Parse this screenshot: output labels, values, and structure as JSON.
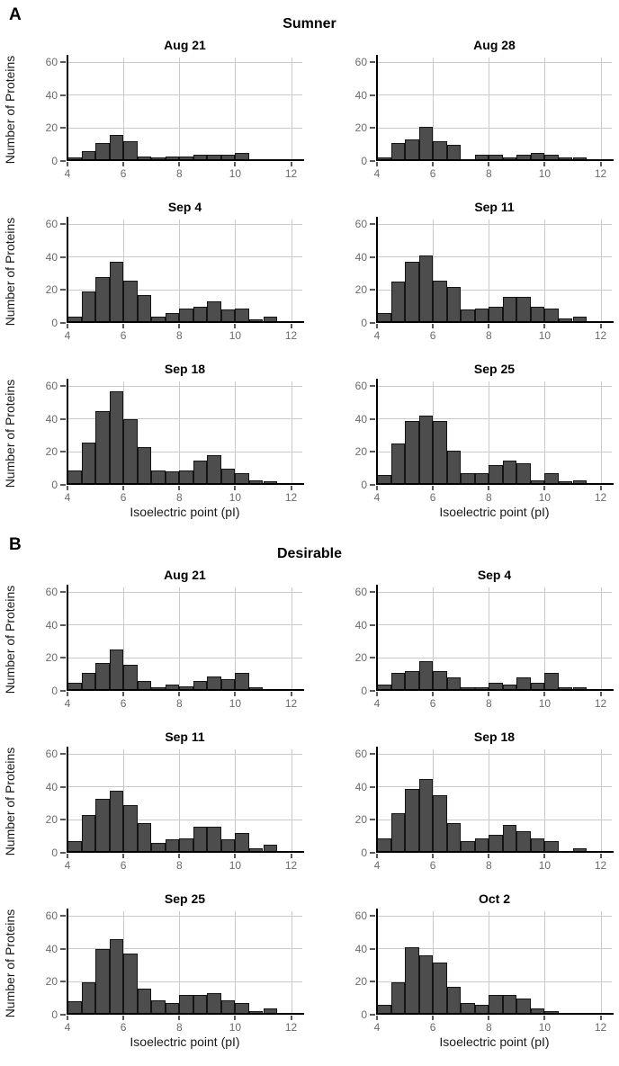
{
  "figure": {
    "colors": {
      "bar_fill": "#4d4d4d",
      "bar_border": "#141414",
      "grid": "#c9c9c9",
      "axis": "#000000",
      "tick_text": "#6b6b6b",
      "tick_mark": "#5a5a5a",
      "text": "#111111"
    }
  },
  "chart_data": [
    {
      "type": "histogram",
      "panel_label": "A",
      "group_title": "Sumner",
      "xlabel": "Isoelectric point (pI)",
      "ylabel": "Number of Proteins",
      "xlim": [
        4,
        12
      ],
      "ylim": [
        0,
        60
      ],
      "x_ticks": [
        4,
        6,
        8,
        10,
        12
      ],
      "y_ticks": [
        0,
        20,
        40,
        60
      ],
      "bin_start": 4,
      "bin_width": 0.5,
      "grid": "on",
      "legend": "none",
      "series": [
        {
          "name": "Aug 21",
          "counts": [
            2,
            6,
            11,
            16,
            12,
            3,
            2,
            3,
            3,
            4,
            4,
            4,
            5,
            0,
            1,
            0
          ]
        },
        {
          "name": "Aug 28",
          "counts": [
            2,
            11,
            13,
            21,
            12,
            10,
            1,
            4,
            4,
            2,
            4,
            5,
            4,
            2,
            2,
            0
          ]
        },
        {
          "name": "Sep 4",
          "counts": [
            4,
            19,
            28,
            37,
            26,
            17,
            4,
            6,
            9,
            10,
            13,
            8,
            9,
            2,
            4,
            0
          ]
        },
        {
          "name": "Sep 11",
          "counts": [
            6,
            25,
            37,
            41,
            26,
            22,
            8,
            9,
            10,
            16,
            16,
            10,
            9,
            3,
            4,
            0
          ]
        },
        {
          "name": "Sep 18",
          "counts": [
            9,
            26,
            45,
            57,
            40,
            23,
            9,
            8,
            9,
            15,
            18,
            10,
            7,
            3,
            2,
            0
          ]
        },
        {
          "name": "Sep 25",
          "counts": [
            6,
            25,
            39,
            42,
            39,
            21,
            7,
            7,
            12,
            15,
            13,
            3,
            7,
            2,
            3,
            0
          ]
        }
      ]
    },
    {
      "type": "histogram",
      "panel_label": "B",
      "group_title": "Desirable",
      "xlabel": "Isoelectric point (pI)",
      "ylabel": "Number of Proteins",
      "xlim": [
        4,
        12
      ],
      "ylim": [
        0,
        60
      ],
      "x_ticks": [
        4,
        6,
        8,
        10,
        12
      ],
      "y_ticks": [
        0,
        20,
        40,
        60
      ],
      "bin_start": 4,
      "bin_width": 0.5,
      "grid": "on",
      "legend": "none",
      "series": [
        {
          "name": "Aug 21",
          "counts": [
            5,
            11,
            17,
            25,
            16,
            6,
            2,
            4,
            3,
            6,
            9,
            7,
            11,
            2,
            1,
            0
          ]
        },
        {
          "name": "Sep 4",
          "counts": [
            4,
            11,
            12,
            18,
            12,
            8,
            2,
            2,
            5,
            4,
            8,
            5,
            11,
            2,
            2,
            0
          ]
        },
        {
          "name": "Sep 11",
          "counts": [
            7,
            23,
            33,
            38,
            29,
            18,
            6,
            8,
            9,
            16,
            16,
            8,
            12,
            3,
            5,
            0
          ]
        },
        {
          "name": "Sep 18",
          "counts": [
            9,
            24,
            39,
            45,
            35,
            18,
            7,
            9,
            11,
            17,
            13,
            9,
            7,
            1,
            3,
            0
          ]
        },
        {
          "name": "Sep 25",
          "counts": [
            8,
            20,
            40,
            46,
            37,
            16,
            9,
            7,
            12,
            12,
            13,
            9,
            7,
            2,
            4,
            0
          ]
        },
        {
          "name": "Oct 2",
          "counts": [
            6,
            20,
            41,
            36,
            32,
            17,
            7,
            6,
            12,
            12,
            10,
            4,
            2,
            1,
            1,
            0
          ]
        }
      ]
    }
  ]
}
